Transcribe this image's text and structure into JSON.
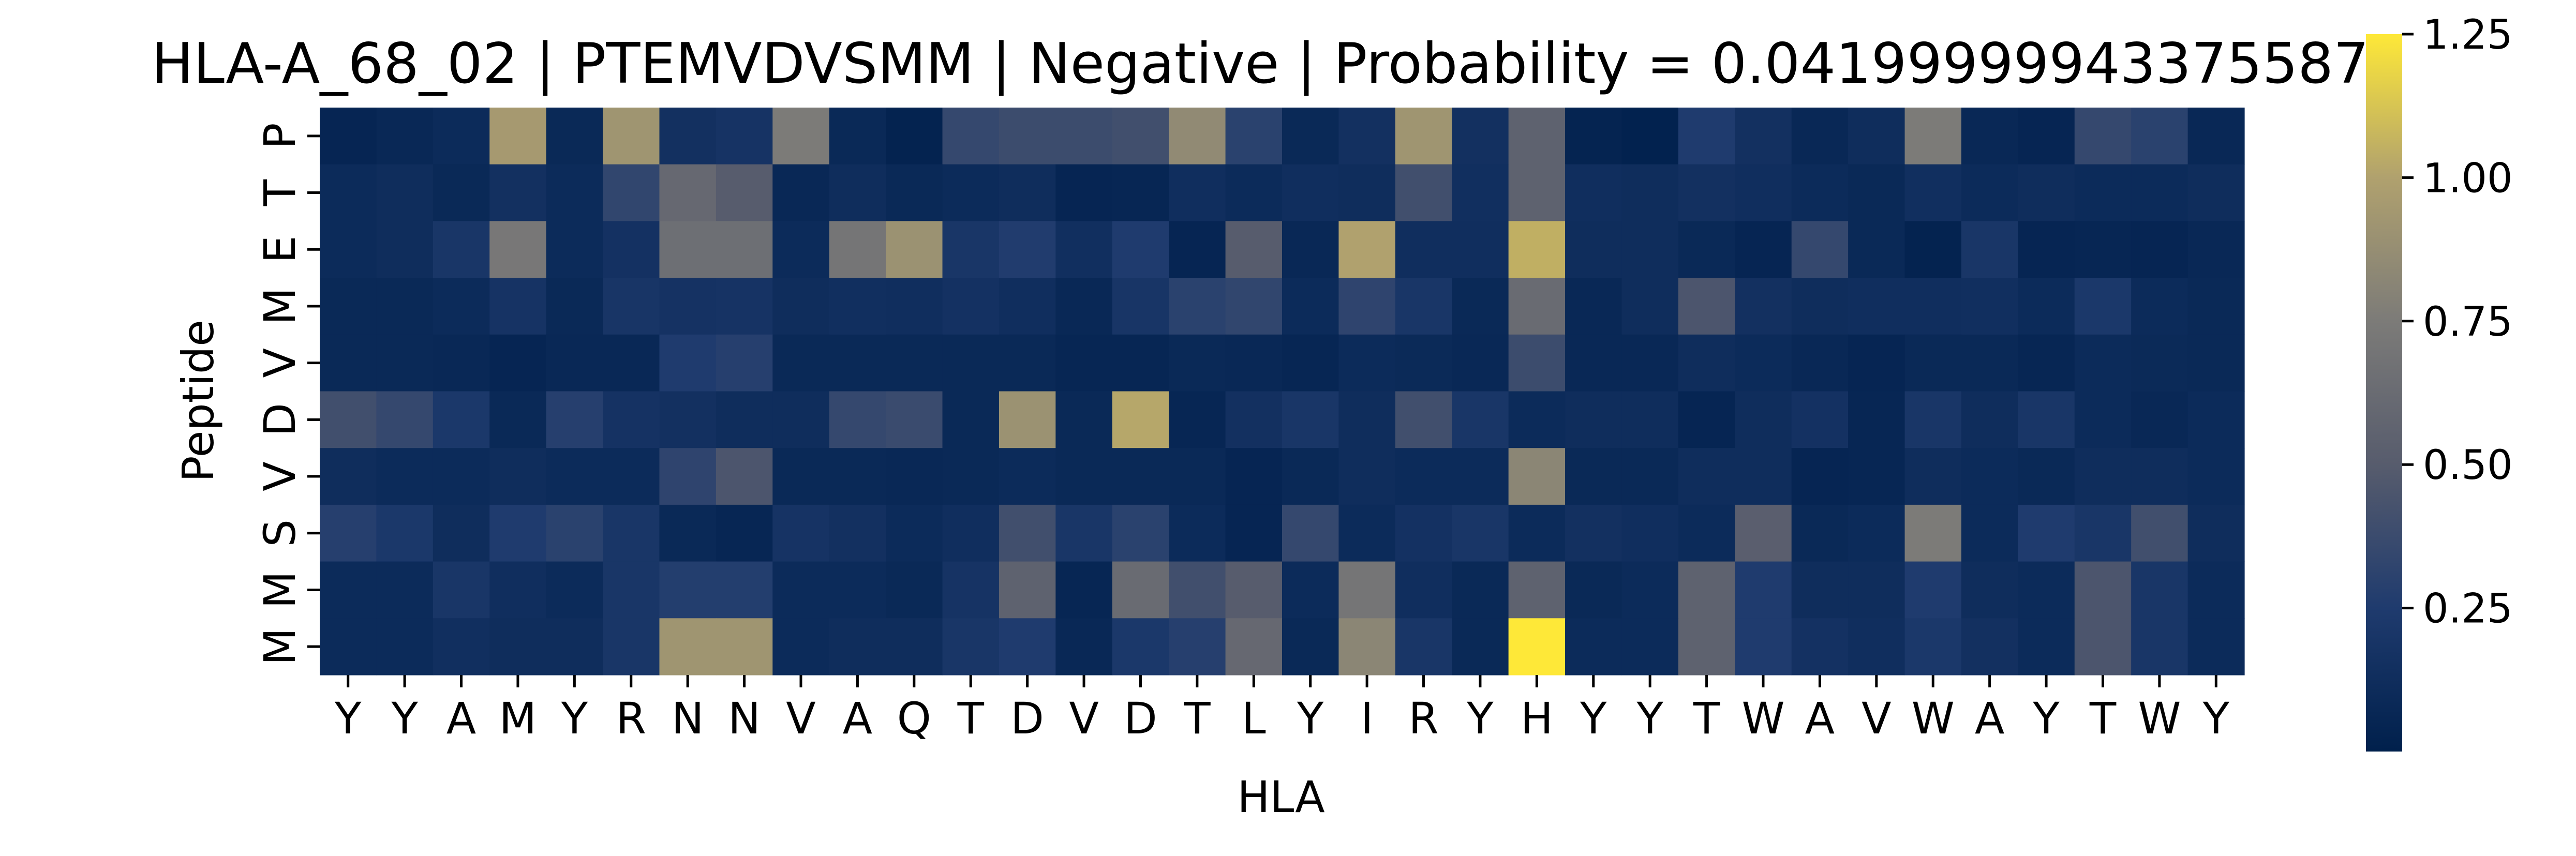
{
  "chart_data": {
    "type": "heatmap",
    "title": "HLA-A_68_02 | PTEMVDVSMM | Negative | Probability = 0.041999999433755875",
    "xlabel": "HLA",
    "ylabel": "Peptide",
    "x_categories": [
      "Y",
      "Y",
      "A",
      "M",
      "Y",
      "R",
      "N",
      "N",
      "V",
      "A",
      "Q",
      "T",
      "D",
      "V",
      "D",
      "T",
      "L",
      "Y",
      "I",
      "R",
      "Y",
      "H",
      "Y",
      "Y",
      "T",
      "W",
      "A",
      "V",
      "W",
      "A",
      "Y",
      "T",
      "W",
      "Y"
    ],
    "y_categories": [
      "P",
      "T",
      "E",
      "M",
      "V",
      "D",
      "V",
      "S",
      "M",
      "M"
    ],
    "colormap": "cividis",
    "colorbar": {
      "min": 0.0,
      "max": 1.25,
      "ticks": [
        0.25,
        0.5,
        0.75,
        1.0,
        1.25
      ],
      "tick_labels": [
        "0.25",
        "0.50",
        "0.75",
        "1.00",
        "1.25"
      ]
    },
    "values": [
      [
        0.05,
        0.07,
        0.1,
        0.95,
        0.08,
        0.92,
        0.15,
        0.18,
        0.75,
        0.08,
        0.03,
        0.35,
        0.38,
        0.38,
        0.4,
        0.85,
        0.3,
        0.08,
        0.15,
        0.92,
        0.15,
        0.55,
        0.04,
        0.02,
        0.25,
        0.15,
        0.07,
        0.12,
        0.75,
        0.07,
        0.05,
        0.35,
        0.3,
        0.07
      ],
      [
        0.1,
        0.12,
        0.08,
        0.15,
        0.1,
        0.33,
        0.6,
        0.5,
        0.07,
        0.12,
        0.08,
        0.1,
        0.12,
        0.05,
        0.06,
        0.13,
        0.1,
        0.13,
        0.12,
        0.4,
        0.14,
        0.55,
        0.13,
        0.12,
        0.15,
        0.13,
        0.1,
        0.08,
        0.14,
        0.1,
        0.12,
        0.1,
        0.1,
        0.12
      ],
      [
        0.1,
        0.12,
        0.2,
        0.72,
        0.1,
        0.16,
        0.65,
        0.65,
        0.1,
        0.7,
        0.9,
        0.2,
        0.26,
        0.14,
        0.25,
        0.05,
        0.5,
        0.07,
        1.0,
        0.13,
        0.13,
        1.05,
        0.12,
        0.12,
        0.08,
        0.05,
        0.35,
        0.08,
        0.03,
        0.2,
        0.05,
        0.06,
        0.05,
        0.07
      ],
      [
        0.08,
        0.08,
        0.1,
        0.18,
        0.08,
        0.19,
        0.17,
        0.18,
        0.12,
        0.14,
        0.13,
        0.16,
        0.13,
        0.07,
        0.19,
        0.3,
        0.33,
        0.1,
        0.32,
        0.2,
        0.08,
        0.62,
        0.07,
        0.12,
        0.45,
        0.15,
        0.12,
        0.13,
        0.13,
        0.14,
        0.1,
        0.22,
        0.1,
        0.08
      ],
      [
        0.08,
        0.08,
        0.07,
        0.05,
        0.07,
        0.07,
        0.25,
        0.28,
        0.08,
        0.08,
        0.08,
        0.08,
        0.08,
        0.06,
        0.06,
        0.08,
        0.07,
        0.06,
        0.1,
        0.09,
        0.07,
        0.38,
        0.07,
        0.07,
        0.12,
        0.1,
        0.07,
        0.05,
        0.08,
        0.08,
        0.06,
        0.1,
        0.09,
        0.08
      ],
      [
        0.4,
        0.35,
        0.22,
        0.08,
        0.28,
        0.17,
        0.15,
        0.12,
        0.12,
        0.35,
        0.37,
        0.08,
        0.9,
        0.08,
        1.02,
        0.06,
        0.15,
        0.2,
        0.12,
        0.4,
        0.2,
        0.1,
        0.12,
        0.12,
        0.05,
        0.12,
        0.16,
        0.06,
        0.2,
        0.12,
        0.2,
        0.1,
        0.07,
        0.1
      ],
      [
        0.12,
        0.1,
        0.1,
        0.12,
        0.1,
        0.1,
        0.32,
        0.45,
        0.08,
        0.08,
        0.07,
        0.08,
        0.1,
        0.08,
        0.08,
        0.08,
        0.05,
        0.08,
        0.12,
        0.1,
        0.1,
        0.82,
        0.08,
        0.08,
        0.12,
        0.12,
        0.05,
        0.06,
        0.12,
        0.1,
        0.08,
        0.12,
        0.12,
        0.1
      ],
      [
        0.28,
        0.22,
        0.12,
        0.25,
        0.3,
        0.2,
        0.08,
        0.06,
        0.18,
        0.15,
        0.1,
        0.13,
        0.4,
        0.2,
        0.3,
        0.1,
        0.05,
        0.35,
        0.1,
        0.16,
        0.2,
        0.1,
        0.15,
        0.13,
        0.1,
        0.52,
        0.08,
        0.1,
        0.75,
        0.1,
        0.25,
        0.2,
        0.4,
        0.12
      ],
      [
        0.1,
        0.1,
        0.2,
        0.13,
        0.1,
        0.2,
        0.27,
        0.27,
        0.1,
        0.1,
        0.08,
        0.18,
        0.55,
        0.06,
        0.62,
        0.4,
        0.5,
        0.1,
        0.7,
        0.13,
        0.08,
        0.55,
        0.08,
        0.1,
        0.55,
        0.25,
        0.12,
        0.12,
        0.25,
        0.12,
        0.1,
        0.45,
        0.2,
        0.1
      ],
      [
        0.1,
        0.1,
        0.14,
        0.12,
        0.12,
        0.2,
        0.92,
        0.92,
        0.1,
        0.12,
        0.12,
        0.2,
        0.25,
        0.07,
        0.22,
        0.28,
        0.6,
        0.08,
        0.82,
        0.2,
        0.08,
        1.25,
        0.1,
        0.1,
        0.55,
        0.25,
        0.16,
        0.13,
        0.22,
        0.15,
        0.1,
        0.45,
        0.2,
        0.1
      ]
    ]
  }
}
